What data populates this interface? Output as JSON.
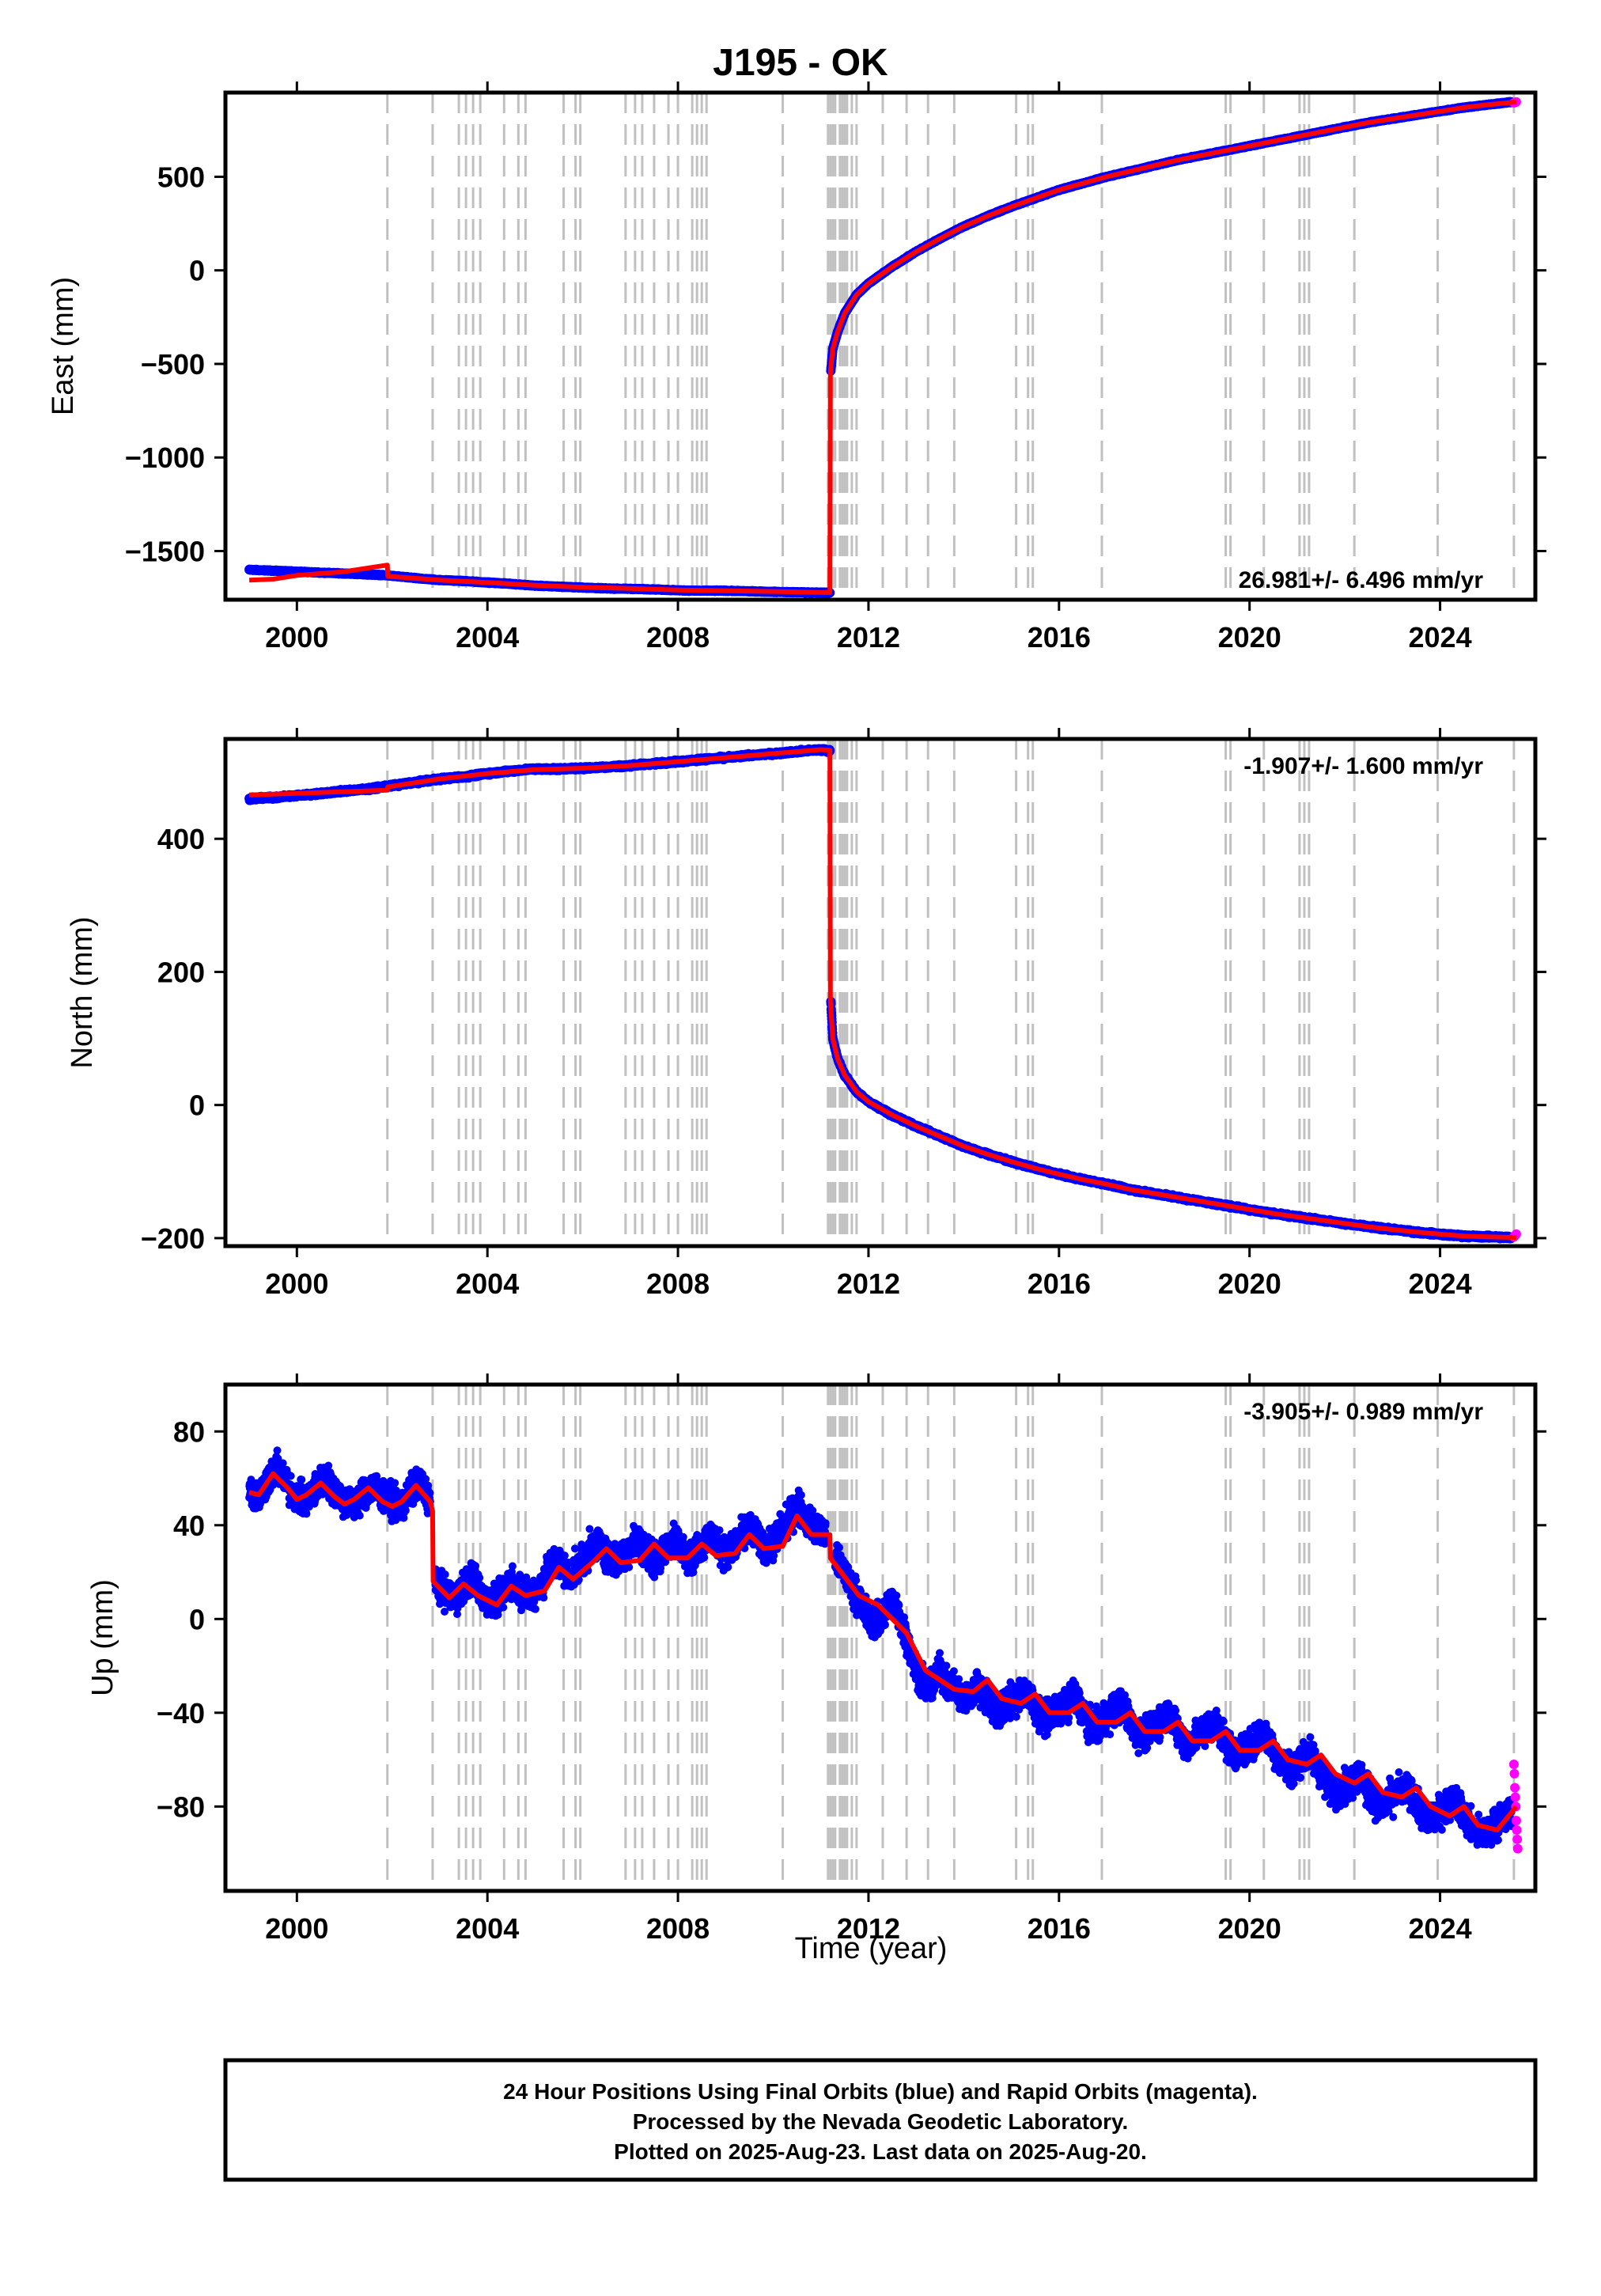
{
  "title": "J195 - OK",
  "colors": {
    "final_points": "#0000ff",
    "rapid_points": "#ff00ff",
    "model_line": "#ff0000",
    "event_lines": "#c0c0c0"
  },
  "xlabel": "Time (year)",
  "x_ticks": [
    2000,
    2004,
    2008,
    2012,
    2016,
    2020,
    2024
  ],
  "event_lines": [
    2001.9,
    2002.85,
    2003.4,
    2003.55,
    2003.7,
    2003.85,
    2004.35,
    2004.65,
    2004.8,
    2005.6,
    2005.85,
    2005.95,
    2006.9,
    2007.1,
    2007.25,
    2007.5,
    2007.8,
    2008.0,
    2008.3,
    2008.4,
    2008.5,
    2008.6,
    2010.2,
    2011.15,
    2011.2,
    2011.25,
    2011.3,
    2011.4,
    2011.45,
    2011.5,
    2011.55,
    2011.65,
    2011.75,
    2012.3,
    2012.8,
    2013.25,
    2013.8,
    2015.1,
    2015.35,
    2015.45,
    2016.9,
    2019.5,
    2019.6,
    2020.3,
    2021.05,
    2021.15,
    2021.25,
    2022.2,
    2023.95,
    2025.55
  ],
  "chart_data": [
    {
      "type": "scatter",
      "name": "east",
      "ylabel": "East (mm)",
      "rate_text": "26.981+/- 6.496 mm/yr",
      "rate_position": "bottom-right",
      "xlim": [
        1998.5,
        2026.0
      ],
      "ylim": [
        -1760,
        950
      ],
      "y_ticks": [
        500,
        0,
        -500,
        -1000,
        -1500
      ],
      "y_tick_labels": [
        "500",
        "0",
        "−500",
        "−1000",
        "−1500"
      ],
      "series": [
        {
          "marker": "point",
          "x": [
            1999.0,
            1999.5,
            2000.0,
            2000.5,
            2001.0,
            2001.5,
            2001.9,
            2002.5,
            2003.0,
            2003.5,
            2004.0,
            2004.5,
            2005.0,
            2005.5,
            2006.0,
            2006.5,
            2007.0,
            2007.5,
            2008.0,
            2008.5,
            2009.0,
            2009.5,
            2010.0,
            2010.5,
            2011.0,
            2011.19
          ],
          "y": [
            -1600,
            -1605,
            -1610,
            -1615,
            -1620,
            -1625,
            -1630,
            -1645,
            -1655,
            -1660,
            -1668,
            -1675,
            -1685,
            -1690,
            -1695,
            -1700,
            -1702,
            -1705,
            -1710,
            -1712,
            -1712,
            -1715,
            -1718,
            -1720,
            -1722,
            -1722
          ]
        },
        {
          "marker": "point",
          "x": [
            2011.21,
            2011.25,
            2011.35,
            2011.5,
            2011.75,
            2012.0,
            2012.5,
            2013.0,
            2013.5,
            2014.0,
            2014.5,
            2015.0,
            2015.5,
            2016.0,
            2016.5,
            2017.0,
            2017.5,
            2018.0,
            2018.5,
            2019.0,
            2019.5,
            2020.0,
            2020.5,
            2021.0,
            2021.5,
            2022.0,
            2022.5,
            2023.0,
            2023.5,
            2024.0,
            2024.5,
            2025.0,
            2025.5
          ],
          "y": [
            -540,
            -420,
            -330,
            -230,
            -130,
            -70,
            20,
            100,
            170,
            235,
            290,
            340,
            385,
            430,
            465,
            500,
            530,
            560,
            590,
            615,
            640,
            665,
            690,
            715,
            740,
            765,
            790,
            810,
            830,
            850,
            870,
            885,
            900
          ]
        },
        {
          "marker": "point",
          "color_key": "rapid_points",
          "x": [
            2025.55,
            2025.58,
            2025.6
          ],
          "y": [
            895,
            898,
            900
          ]
        }
      ],
      "model": {
        "x": [
          1999.0,
          1999.5,
          2000.0,
          2001.0,
          2001.9,
          2001.91,
          2003.0,
          2004.0,
          2005.0,
          2006.0,
          2007.0,
          2008.0,
          2009.0,
          2010.0,
          2011.0,
          2011.19,
          2011.2,
          2011.25,
          2011.35,
          2011.5,
          2011.75,
          2012.0,
          2012.5,
          2013.0,
          2013.5,
          2014.0,
          2014.5,
          2015.0,
          2015.5,
          2016.0,
          2016.5,
          2017.0,
          2017.5,
          2018.0,
          2018.5,
          2019.0,
          2019.5,
          2020.0,
          2020.5,
          2021.0,
          2021.5,
          2022.0,
          2022.5,
          2023.0,
          2023.5,
          2024.0,
          2024.5,
          2025.0,
          2025.6
        ],
        "y": [
          -1655,
          -1650,
          -1630,
          -1610,
          -1575,
          -1635,
          -1655,
          -1668,
          -1683,
          -1693,
          -1700,
          -1708,
          -1712,
          -1716,
          -1721,
          -1722,
          -540,
          -420,
          -330,
          -230,
          -130,
          -70,
          20,
          100,
          170,
          235,
          290,
          340,
          385,
          430,
          465,
          500,
          530,
          560,
          590,
          615,
          640,
          665,
          690,
          715,
          740,
          765,
          790,
          810,
          830,
          850,
          870,
          885,
          900
        ]
      }
    },
    {
      "type": "scatter",
      "name": "north",
      "ylabel": "North (mm)",
      "rate_text": "-1.907+/- 1.600 mm/yr",
      "rate_position": "top-right",
      "xlim": [
        1998.5,
        2026.0
      ],
      "ylim": [
        -212,
        550
      ],
      "y_ticks": [
        400,
        200,
        0,
        -200
      ],
      "y_tick_labels": [
        "400",
        "200",
        "0",
        "−200"
      ],
      "series": [
        {
          "marker": "point",
          "x": [
            1999.0,
            1999.5,
            2000.0,
            2000.5,
            2001.0,
            2001.5,
            2002.0,
            2002.5,
            2003.0,
            2003.5,
            2004.0,
            2004.5,
            2005.0,
            2005.5,
            2006.0,
            2006.5,
            2007.0,
            2007.5,
            2008.0,
            2008.5,
            2009.0,
            2009.5,
            2010.0,
            2010.5,
            2011.0,
            2011.19
          ],
          "y": [
            460,
            462,
            465,
            468,
            472,
            475,
            480,
            485,
            490,
            493,
            498,
            502,
            505,
            505,
            506,
            508,
            510,
            513,
            516,
            519,
            522,
            525,
            528,
            531,
            534,
            532
          ]
        },
        {
          "marker": "point",
          "x": [
            2011.21,
            2011.25,
            2011.35,
            2011.5,
            2011.75,
            2012.0,
            2012.5,
            2013.0,
            2013.5,
            2014.0,
            2014.5,
            2015.0,
            2015.5,
            2016.0,
            2016.5,
            2017.0,
            2017.5,
            2018.0,
            2018.5,
            2019.0,
            2019.5,
            2020.0,
            2020.5,
            2021.0,
            2021.5,
            2022.0,
            2022.5,
            2023.0,
            2023.5,
            2024.0,
            2024.5,
            2025.0,
            2025.5
          ],
          "y": [
            155,
            100,
            70,
            45,
            20,
            5,
            -15,
            -32,
            -47,
            -62,
            -74,
            -85,
            -95,
            -104,
            -112,
            -119,
            -127,
            -133,
            -139,
            -145,
            -151,
            -157,
            -163,
            -168,
            -173,
            -178,
            -183,
            -187,
            -191,
            -194,
            -197,
            -198,
            -199
          ]
        },
        {
          "marker": "point",
          "color_key": "rapid_points",
          "x": [
            2025.55,
            2025.58,
            2025.6
          ],
          "y": [
            -198,
            -196,
            -194
          ]
        }
      ],
      "model": {
        "x": [
          1999.0,
          2001.9,
          2001.91,
          2003.0,
          2004.0,
          2005.0,
          2006.0,
          2007.0,
          2008.0,
          2009.0,
          2010.0,
          2011.0,
          2011.19,
          2011.2,
          2011.25,
          2011.35,
          2011.5,
          2011.75,
          2012.0,
          2012.5,
          2013.0,
          2013.5,
          2014.0,
          2014.5,
          2015.0,
          2015.5,
          2016.0,
          2016.5,
          2017.0,
          2017.5,
          2018.0,
          2018.5,
          2019.0,
          2019.5,
          2020.0,
          2020.5,
          2021.0,
          2021.5,
          2022.0,
          2022.5,
          2023.0,
          2023.5,
          2024.0,
          2024.5,
          2025.0,
          2025.6
        ],
        "y": [
          466,
          473,
          478,
          490,
          498,
          504,
          506,
          510,
          516,
          522,
          528,
          534,
          533,
          155,
          100,
          70,
          45,
          20,
          5,
          -15,
          -32,
          -47,
          -62,
          -74,
          -85,
          -95,
          -104,
          -112,
          -119,
          -127,
          -133,
          -139,
          -145,
          -151,
          -157,
          -163,
          -168,
          -173,
          -178,
          -183,
          -187,
          -191,
          -194,
          -197,
          -198,
          -199
        ]
      }
    },
    {
      "type": "scatter",
      "name": "up",
      "ylabel": "Up (mm)",
      "rate_text": "-3.905+/- 0.989 mm/yr",
      "rate_position": "top-right",
      "xlim": [
        1998.5,
        2026.0
      ],
      "ylim": [
        -116,
        100
      ],
      "y_ticks": [
        80,
        40,
        0,
        -40,
        -80
      ],
      "y_tick_labels": [
        "80",
        "40",
        "0",
        "−40",
        "−80"
      ],
      "series": [
        {
          "marker": "point",
          "x": [
            1999.0,
            1999.2,
            1999.4,
            1999.6,
            1999.8,
            2000.0,
            2000.2,
            2000.4,
            2000.6,
            2000.8,
            2001.0,
            2001.2,
            2001.4,
            2001.6,
            2001.8,
            2002.0,
            2002.2,
            2002.4,
            2002.6,
            2002.8
          ],
          "y": [
            55,
            52,
            60,
            64,
            57,
            52,
            50,
            56,
            60,
            55,
            50,
            48,
            54,
            57,
            52,
            50,
            48,
            55,
            58,
            50
          ]
        },
        {
          "marker": "point",
          "x": [
            2002.9,
            2003.1,
            2003.3,
            2003.5,
            2003.7,
            2003.9,
            2004.1,
            2004.3,
            2004.5,
            2004.7,
            2004.9,
            2005.1,
            2005.3,
            2005.5,
            2005.7,
            2005.9,
            2006.1,
            2006.3,
            2006.5,
            2006.7,
            2006.9,
            2007.1,
            2007.3,
            2007.5,
            2007.7,
            2007.9,
            2008.1,
            2008.3,
            2008.5,
            2008.7,
            2008.9,
            2009.1,
            2009.3,
            2009.5,
            2009.7,
            2009.9,
            2010.1,
            2010.3,
            2010.5,
            2010.7,
            2010.9,
            2011.1
          ],
          "y": [
            15,
            12,
            8,
            14,
            18,
            10,
            6,
            10,
            16,
            12,
            10,
            14,
            22,
            25,
            18,
            22,
            28,
            33,
            28,
            24,
            28,
            34,
            30,
            25,
            28,
            34,
            30,
            26,
            32,
            36,
            30,
            28,
            34,
            40,
            34,
            30,
            36,
            42,
            48,
            42,
            38,
            36
          ]
        },
        {
          "marker": "point",
          "x": [
            2011.3,
            2011.5,
            2011.7,
            2011.9,
            2012.1,
            2012.3,
            2012.5,
            2012.7,
            2012.9,
            2013.1,
            2013.3,
            2013.5,
            2013.7,
            2013.9,
            2014.1,
            2014.3,
            2014.5,
            2014.7,
            2014.9,
            2015.1,
            2015.3,
            2015.5,
            2015.7,
            2015.9,
            2016.1,
            2016.3,
            2016.5,
            2016.7,
            2016.9,
            2017.1,
            2017.3,
            2017.5,
            2017.7,
            2017.9,
            2018.1,
            2018.3,
            2018.5,
            2018.7,
            2018.9,
            2019.1,
            2019.3,
            2019.5,
            2019.7,
            2019.9,
            2020.1,
            2020.3,
            2020.5,
            2020.7,
            2020.9,
            2021.1,
            2021.3,
            2021.5,
            2021.7,
            2021.9,
            2022.1,
            2022.3,
            2022.5,
            2022.7,
            2022.9,
            2023.1,
            2023.3,
            2023.5,
            2023.7,
            2023.9,
            2024.1,
            2024.3,
            2024.5,
            2024.7,
            2024.9,
            2025.1,
            2025.3,
            2025.5
          ],
          "y": [
            25,
            20,
            12,
            4,
            -2,
            2,
            8,
            -2,
            -15,
            -26,
            -30,
            -22,
            -28,
            -32,
            -34,
            -28,
            -34,
            -40,
            -36,
            -34,
            -30,
            -38,
            -42,
            -40,
            -38,
            -32,
            -40,
            -46,
            -44,
            -40,
            -36,
            -44,
            -50,
            -48,
            -44,
            -40,
            -48,
            -54,
            -50,
            -46,
            -44,
            -52,
            -58,
            -56,
            -52,
            -48,
            -56,
            -62,
            -64,
            -60,
            -58,
            -66,
            -72,
            -74,
            -70,
            -66,
            -74,
            -80,
            -78,
            -74,
            -72,
            -80,
            -86,
            -84,
            -80,
            -76,
            -84,
            -90,
            -92,
            -88,
            -86,
            -82
          ]
        },
        {
          "marker": "point",
          "color_key": "rapid_points",
          "x": [
            2025.55,
            2025.56,
            2025.57,
            2025.58,
            2025.59,
            2025.6,
            2025.61,
            2025.62,
            2025.63
          ],
          "y": [
            -62,
            -66,
            -72,
            -76,
            -80,
            -86,
            -90,
            -94,
            -98
          ]
        }
      ],
      "model": {
        "x": [
          1999.0,
          1999.2,
          1999.5,
          1999.8,
          2000.0,
          2000.2,
          2000.5,
          2000.8,
          2001.0,
          2001.2,
          2001.5,
          2001.8,
          2002.0,
          2002.2,
          2002.5,
          2002.8,
          2002.85,
          2002.86,
          2003.2,
          2003.5,
          2003.8,
          2004.2,
          2004.5,
          2004.8,
          2005.2,
          2005.5,
          2005.8,
          2006.2,
          2006.5,
          2006.8,
          2007.2,
          2007.5,
          2007.8,
          2008.2,
          2008.5,
          2008.8,
          2009.2,
          2009.5,
          2009.8,
          2010.2,
          2010.5,
          2010.8,
          2011.19,
          2011.2,
          2011.5,
          2011.8,
          2012.2,
          2012.5,
          2012.8,
          2013.2,
          2013.5,
          2013.8,
          2014.2,
          2014.5,
          2014.8,
          2015.2,
          2015.5,
          2015.8,
          2016.2,
          2016.5,
          2016.8,
          2017.2,
          2017.5,
          2017.8,
          2018.2,
          2018.5,
          2018.8,
          2019.2,
          2019.5,
          2019.8,
          2020.2,
          2020.5,
          2020.8,
          2021.2,
          2021.5,
          2021.8,
          2022.2,
          2022.5,
          2022.8,
          2023.2,
          2023.5,
          2023.8,
          2024.2,
          2024.5,
          2024.8,
          2025.2,
          2025.6
        ],
        "y": [
          54,
          53,
          62,
          56,
          51,
          53,
          58,
          52,
          49,
          51,
          56,
          50,
          48,
          50,
          57,
          50,
          46,
          16,
          9,
          15,
          10,
          6,
          14,
          10,
          12,
          22,
          17,
          24,
          30,
          24,
          25,
          32,
          26,
          26,
          32,
          27,
          28,
          36,
          30,
          31,
          44,
          36,
          36,
          26,
          18,
          10,
          6,
          0,
          -6,
          -22,
          -26,
          -30,
          -31,
          -26,
          -34,
          -36,
          -32,
          -40,
          -40,
          -36,
          -44,
          -44,
          -40,
          -48,
          -48,
          -44,
          -52,
          -52,
          -48,
          -56,
          -56,
          -52,
          -60,
          -62,
          -58,
          -66,
          -70,
          -66,
          -74,
          -76,
          -72,
          -80,
          -84,
          -80,
          -88,
          -90,
          -80
        ]
      }
    }
  ],
  "caption": {
    "line1": "24 Hour Positions Using Final Orbits (blue) and Rapid Orbits (magenta).",
    "line2": "Processed by the Nevada Geodetic Laboratory.",
    "line3": "Plotted on 2025-Aug-23. Last data on 2025-Aug-20."
  }
}
